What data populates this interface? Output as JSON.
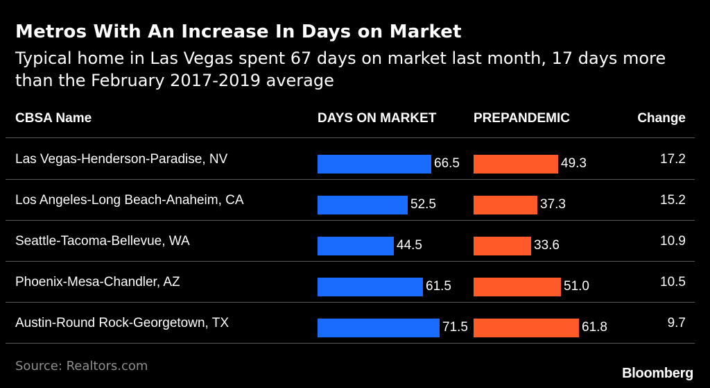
{
  "chart_data": {
    "type": "table",
    "title": "Metros With An Increase In Days on Market",
    "subtitle": "Typical home in Las Vegas spent 67 days on market last month, 17 days more than the February 2017-2019 average",
    "columns": [
      "CBSA Name",
      "DAYS ON MARKET",
      "PREPANDEMIC",
      "Change"
    ],
    "series_colors": {
      "days_on_market": "#1a6cff",
      "prepandemic": "#ff5a28"
    },
    "bar_max": 75,
    "rows": [
      {
        "name": "Las Vegas-Henderson-Paradise, NV",
        "days_on_market": 66.5,
        "days_label": "66.5",
        "prepandemic": 49.3,
        "pre_label": "49.3",
        "change": "17.2"
      },
      {
        "name": "Los Angeles-Long Beach-Anaheim, CA",
        "days_on_market": 52.5,
        "days_label": "52.5",
        "prepandemic": 37.3,
        "pre_label": "37.3",
        "change": "15.2"
      },
      {
        "name": "Seattle-Tacoma-Bellevue, WA",
        "days_on_market": 44.5,
        "days_label": "44.5",
        "prepandemic": 33.6,
        "pre_label": "33.6",
        "change": "10.9"
      },
      {
        "name": "Phoenix-Mesa-Chandler, AZ",
        "days_on_market": 61.5,
        "days_label": "61.5",
        "prepandemic": 51.0,
        "pre_label": "51.0",
        "change": "10.5"
      },
      {
        "name": "Austin-Round Rock-Georgetown, TX",
        "days_on_market": 71.5,
        "days_label": "71.5",
        "prepandemic": 61.8,
        "pre_label": "61.8",
        "change": "9.7"
      }
    ]
  },
  "footer": {
    "source": "Source: Realtors.com",
    "brand": "Bloomberg"
  }
}
